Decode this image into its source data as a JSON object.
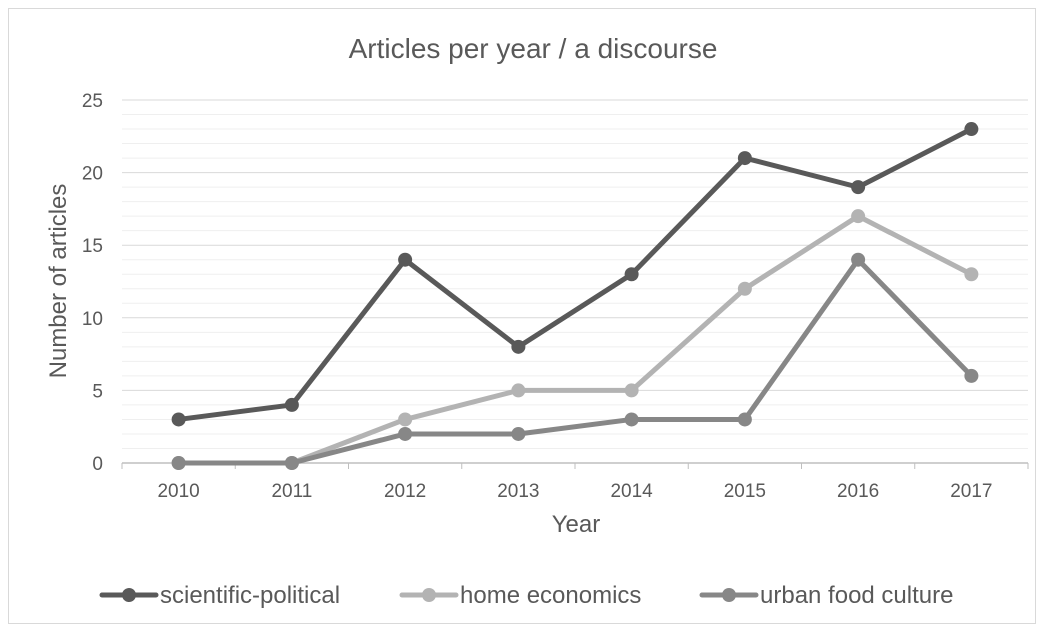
{
  "chart_data": {
    "type": "line",
    "title": "Articles per year / a discourse",
    "xlabel": "Year",
    "ylabel": "Number of articles",
    "x": [
      "2010",
      "2011",
      "2012",
      "2013",
      "2014",
      "2015",
      "2016",
      "2017"
    ],
    "ylim": [
      0,
      25
    ],
    "yticks": [
      0,
      5,
      10,
      15,
      20,
      25
    ],
    "grid": true,
    "legend_position": "bottom",
    "series": [
      {
        "name": "scientific-political",
        "color": "#595959",
        "values": [
          3,
          4,
          14,
          8,
          13,
          21,
          19,
          23
        ]
      },
      {
        "name": "home economics",
        "color": "#b3b3b3",
        "values": [
          0,
          0,
          3,
          5,
          5,
          12,
          17,
          13
        ]
      },
      {
        "name": "urban food culture",
        "color": "#878787",
        "values": [
          0,
          0,
          2,
          2,
          3,
          3,
          14,
          6
        ]
      }
    ]
  }
}
